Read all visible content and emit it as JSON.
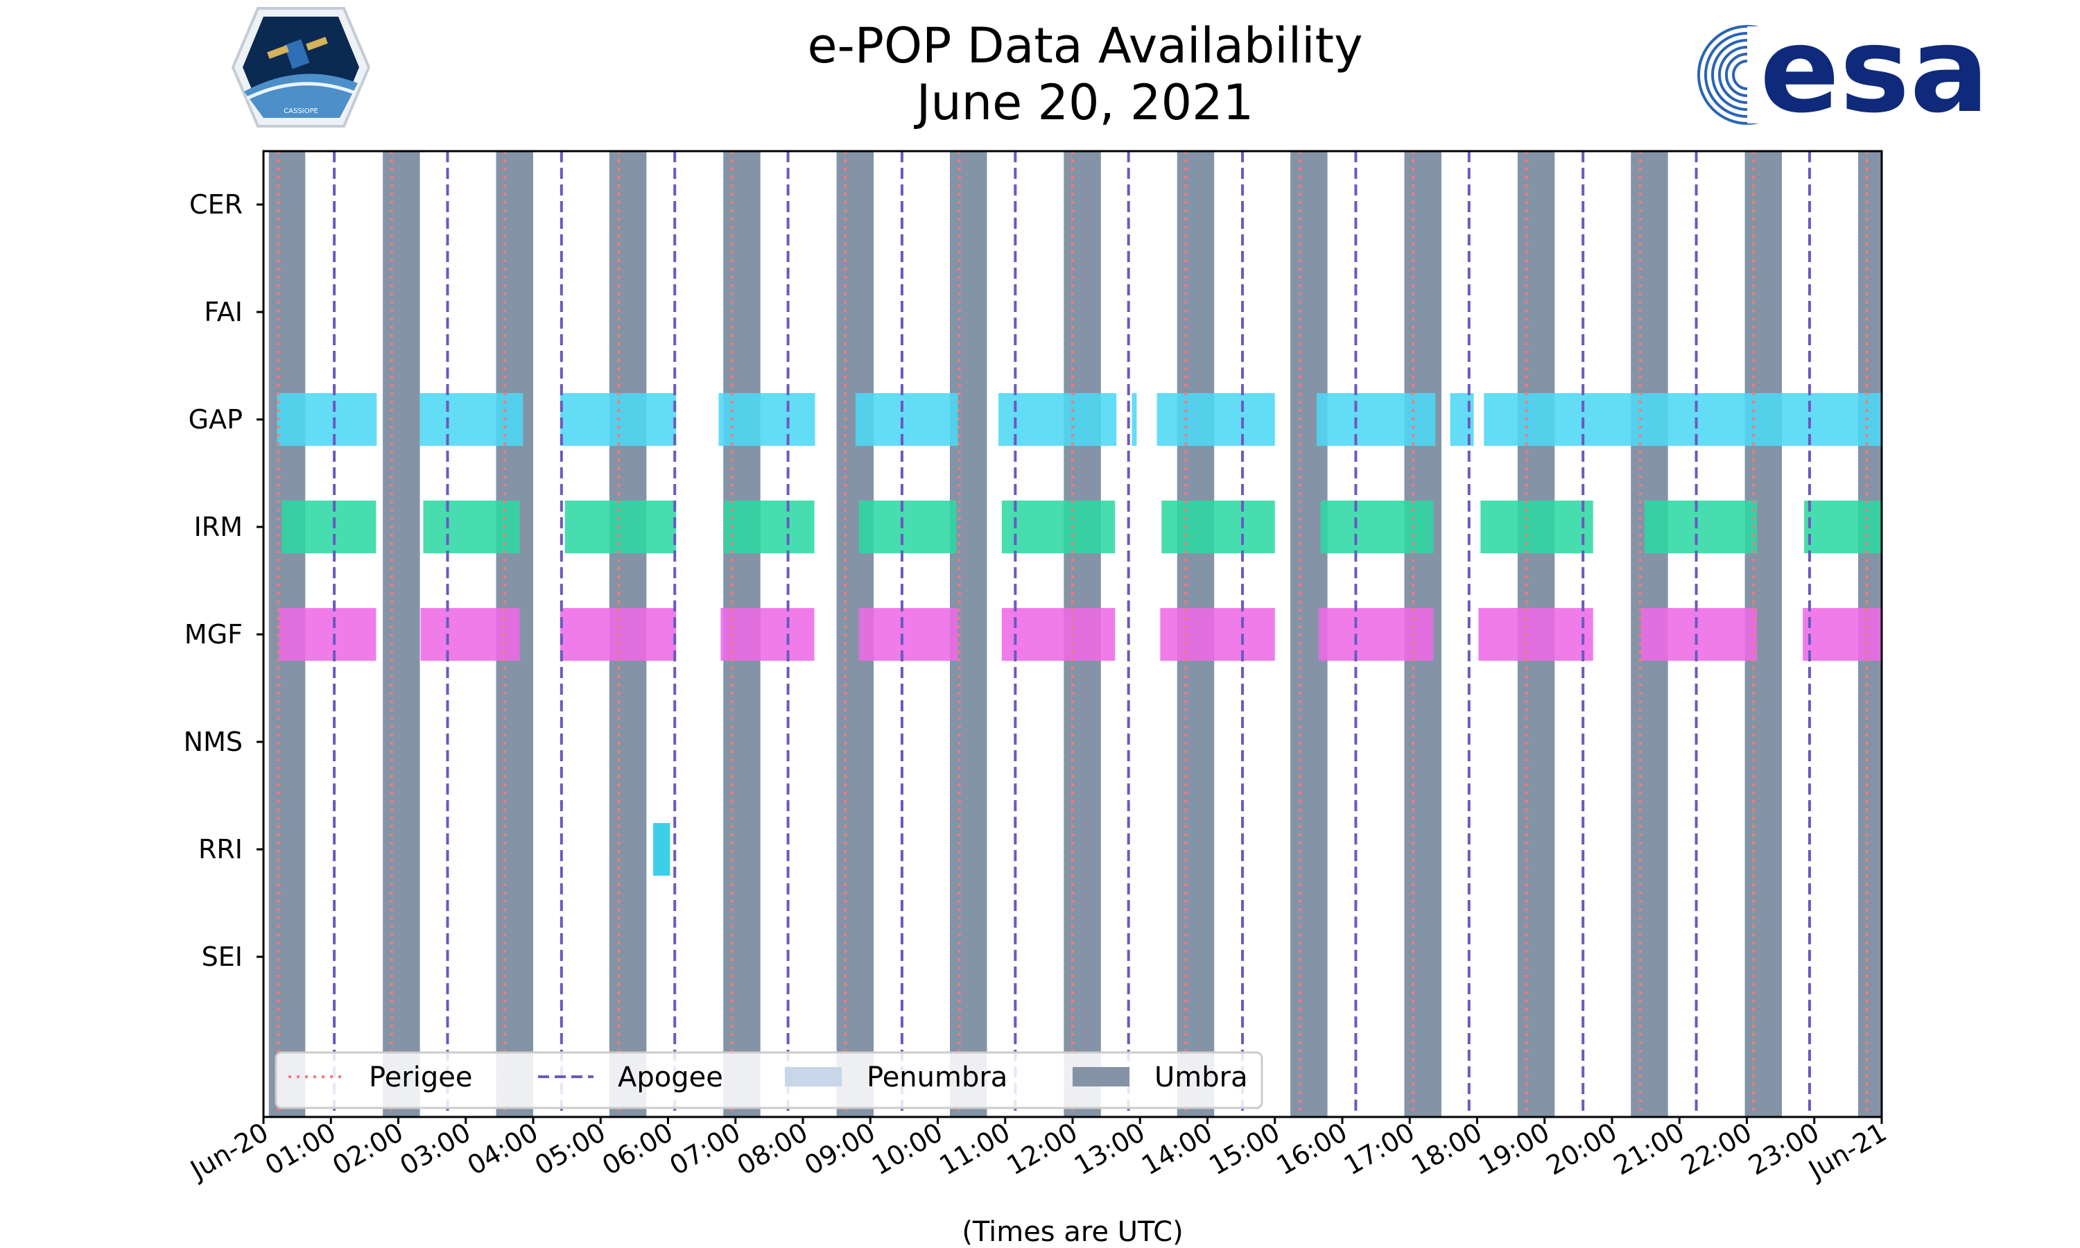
{
  "logos": {
    "left": {
      "name": "CASSIOPE",
      "text": "CASSIOPE"
    },
    "right": {
      "name": "esa",
      "text": "esa",
      "color": "#0f2a7a"
    }
  },
  "chart_data": {
    "type": "timeline",
    "title": "e-POP Data Availability",
    "subtitle": "June 20, 2021",
    "xlabel": "(Times are UTC)",
    "ylabel": "",
    "x_unit": "hours since 2021-06-20 00:00 UTC",
    "xlim": [
      0,
      24
    ],
    "x_ticks": [
      {
        "value": 0,
        "label": "Jun-20"
      },
      {
        "value": 1,
        "label": "01:00"
      },
      {
        "value": 2,
        "label": "02:00"
      },
      {
        "value": 3,
        "label": "03:00"
      },
      {
        "value": 4,
        "label": "04:00"
      },
      {
        "value": 5,
        "label": "05:00"
      },
      {
        "value": 6,
        "label": "06:00"
      },
      {
        "value": 7,
        "label": "07:00"
      },
      {
        "value": 8,
        "label": "08:00"
      },
      {
        "value": 9,
        "label": "09:00"
      },
      {
        "value": 10,
        "label": "10:00"
      },
      {
        "value": 11,
        "label": "11:00"
      },
      {
        "value": 12,
        "label": "12:00"
      },
      {
        "value": 13,
        "label": "13:00"
      },
      {
        "value": 14,
        "label": "14:00"
      },
      {
        "value": 15,
        "label": "15:00"
      },
      {
        "value": 16,
        "label": "16:00"
      },
      {
        "value": 17,
        "label": "17:00"
      },
      {
        "value": 18,
        "label": "18:00"
      },
      {
        "value": 19,
        "label": "19:00"
      },
      {
        "value": 20,
        "label": "20:00"
      },
      {
        "value": 21,
        "label": "21:00"
      },
      {
        "value": 22,
        "label": "22:00"
      },
      {
        "value": 23,
        "label": "23:00"
      },
      {
        "value": 24,
        "label": "Jun-21"
      }
    ],
    "instruments": [
      "CER",
      "FAI",
      "GAP",
      "IRM",
      "MGF",
      "NMS",
      "RRI",
      "SEI"
    ],
    "series": [
      {
        "name": "CER",
        "color": "#4dd8f5",
        "intervals": []
      },
      {
        "name": "FAI",
        "color": "#4dd8f5",
        "intervals": []
      },
      {
        "name": "GAP",
        "color": "#4dd8f5",
        "intervals": [
          [
            0.2,
            1.68
          ],
          [
            2.32,
            3.85
          ],
          [
            4.4,
            6.12
          ],
          [
            6.75,
            8.18
          ],
          [
            8.78,
            10.3
          ],
          [
            10.9,
            12.65
          ],
          [
            12.88,
            12.95
          ],
          [
            13.25,
            15.0
          ],
          [
            15.62,
            17.38
          ],
          [
            17.6,
            17.95
          ],
          [
            18.1,
            24.0
          ]
        ]
      },
      {
        "name": "IRM",
        "color": "#2ed8a3",
        "intervals": [
          [
            0.27,
            1.67
          ],
          [
            2.37,
            3.8
          ],
          [
            4.47,
            6.12
          ],
          [
            6.83,
            8.17
          ],
          [
            8.83,
            10.28
          ],
          [
            10.95,
            12.63
          ],
          [
            13.32,
            15.0
          ],
          [
            15.68,
            17.35
          ],
          [
            18.05,
            19.72
          ],
          [
            20.48,
            22.15
          ],
          [
            22.85,
            24.0
          ]
        ]
      },
      {
        "name": "MGF",
        "color": "#ee6ae6",
        "intervals": [
          [
            0.23,
            1.67
          ],
          [
            2.33,
            3.8
          ],
          [
            4.4,
            6.12
          ],
          [
            6.78,
            8.17
          ],
          [
            8.83,
            10.3
          ],
          [
            10.95,
            12.63
          ],
          [
            13.3,
            15.0
          ],
          [
            15.65,
            17.35
          ],
          [
            18.02,
            19.72
          ],
          [
            20.43,
            22.15
          ],
          [
            22.83,
            24.0
          ]
        ]
      },
      {
        "name": "NMS",
        "color": "#4dd8f5",
        "intervals": []
      },
      {
        "name": "RRI",
        "color": "#22c8e6",
        "intervals": [
          [
            5.78,
            6.03
          ]
        ]
      },
      {
        "name": "SEI",
        "color": "#4dd8f5",
        "intervals": []
      }
    ],
    "umbra_intervals": [
      [
        0.08,
        0.62
      ],
      [
        1.77,
        2.32
      ],
      [
        3.45,
        4.0
      ],
      [
        5.13,
        5.68
      ],
      [
        6.82,
        7.37
      ],
      [
        8.5,
        9.05
      ],
      [
        10.18,
        10.73
      ],
      [
        11.87,
        12.42
      ],
      [
        13.55,
        14.1
      ],
      [
        15.23,
        15.78
      ],
      [
        16.92,
        17.47
      ],
      [
        18.6,
        19.15
      ],
      [
        20.28,
        20.83
      ],
      [
        21.97,
        22.52
      ],
      [
        23.65,
        24.0
      ]
    ],
    "perigee_times": [
      0.22,
      1.9,
      3.58,
      5.27,
      6.95,
      8.63,
      10.32,
      12.0,
      13.68,
      15.37,
      17.05,
      18.73,
      20.42,
      22.1,
      23.78
    ],
    "apogee_times": [
      1.05,
      2.73,
      4.42,
      6.1,
      7.78,
      9.47,
      11.15,
      12.83,
      14.52,
      16.2,
      17.88,
      19.57,
      21.25,
      22.93
    ],
    "legend": [
      {
        "label": "Perigee",
        "style": "dotted",
        "color": "#f47a7a"
      },
      {
        "label": "Apogee",
        "style": "dashed",
        "color": "#6a5ac0"
      },
      {
        "label": "Penumbra",
        "style": "patch",
        "color": "#c7d6e8"
      },
      {
        "label": "Umbra",
        "style": "patch",
        "color": "#8494a6"
      }
    ],
    "legend_position": "lower-left",
    "grid": false
  }
}
